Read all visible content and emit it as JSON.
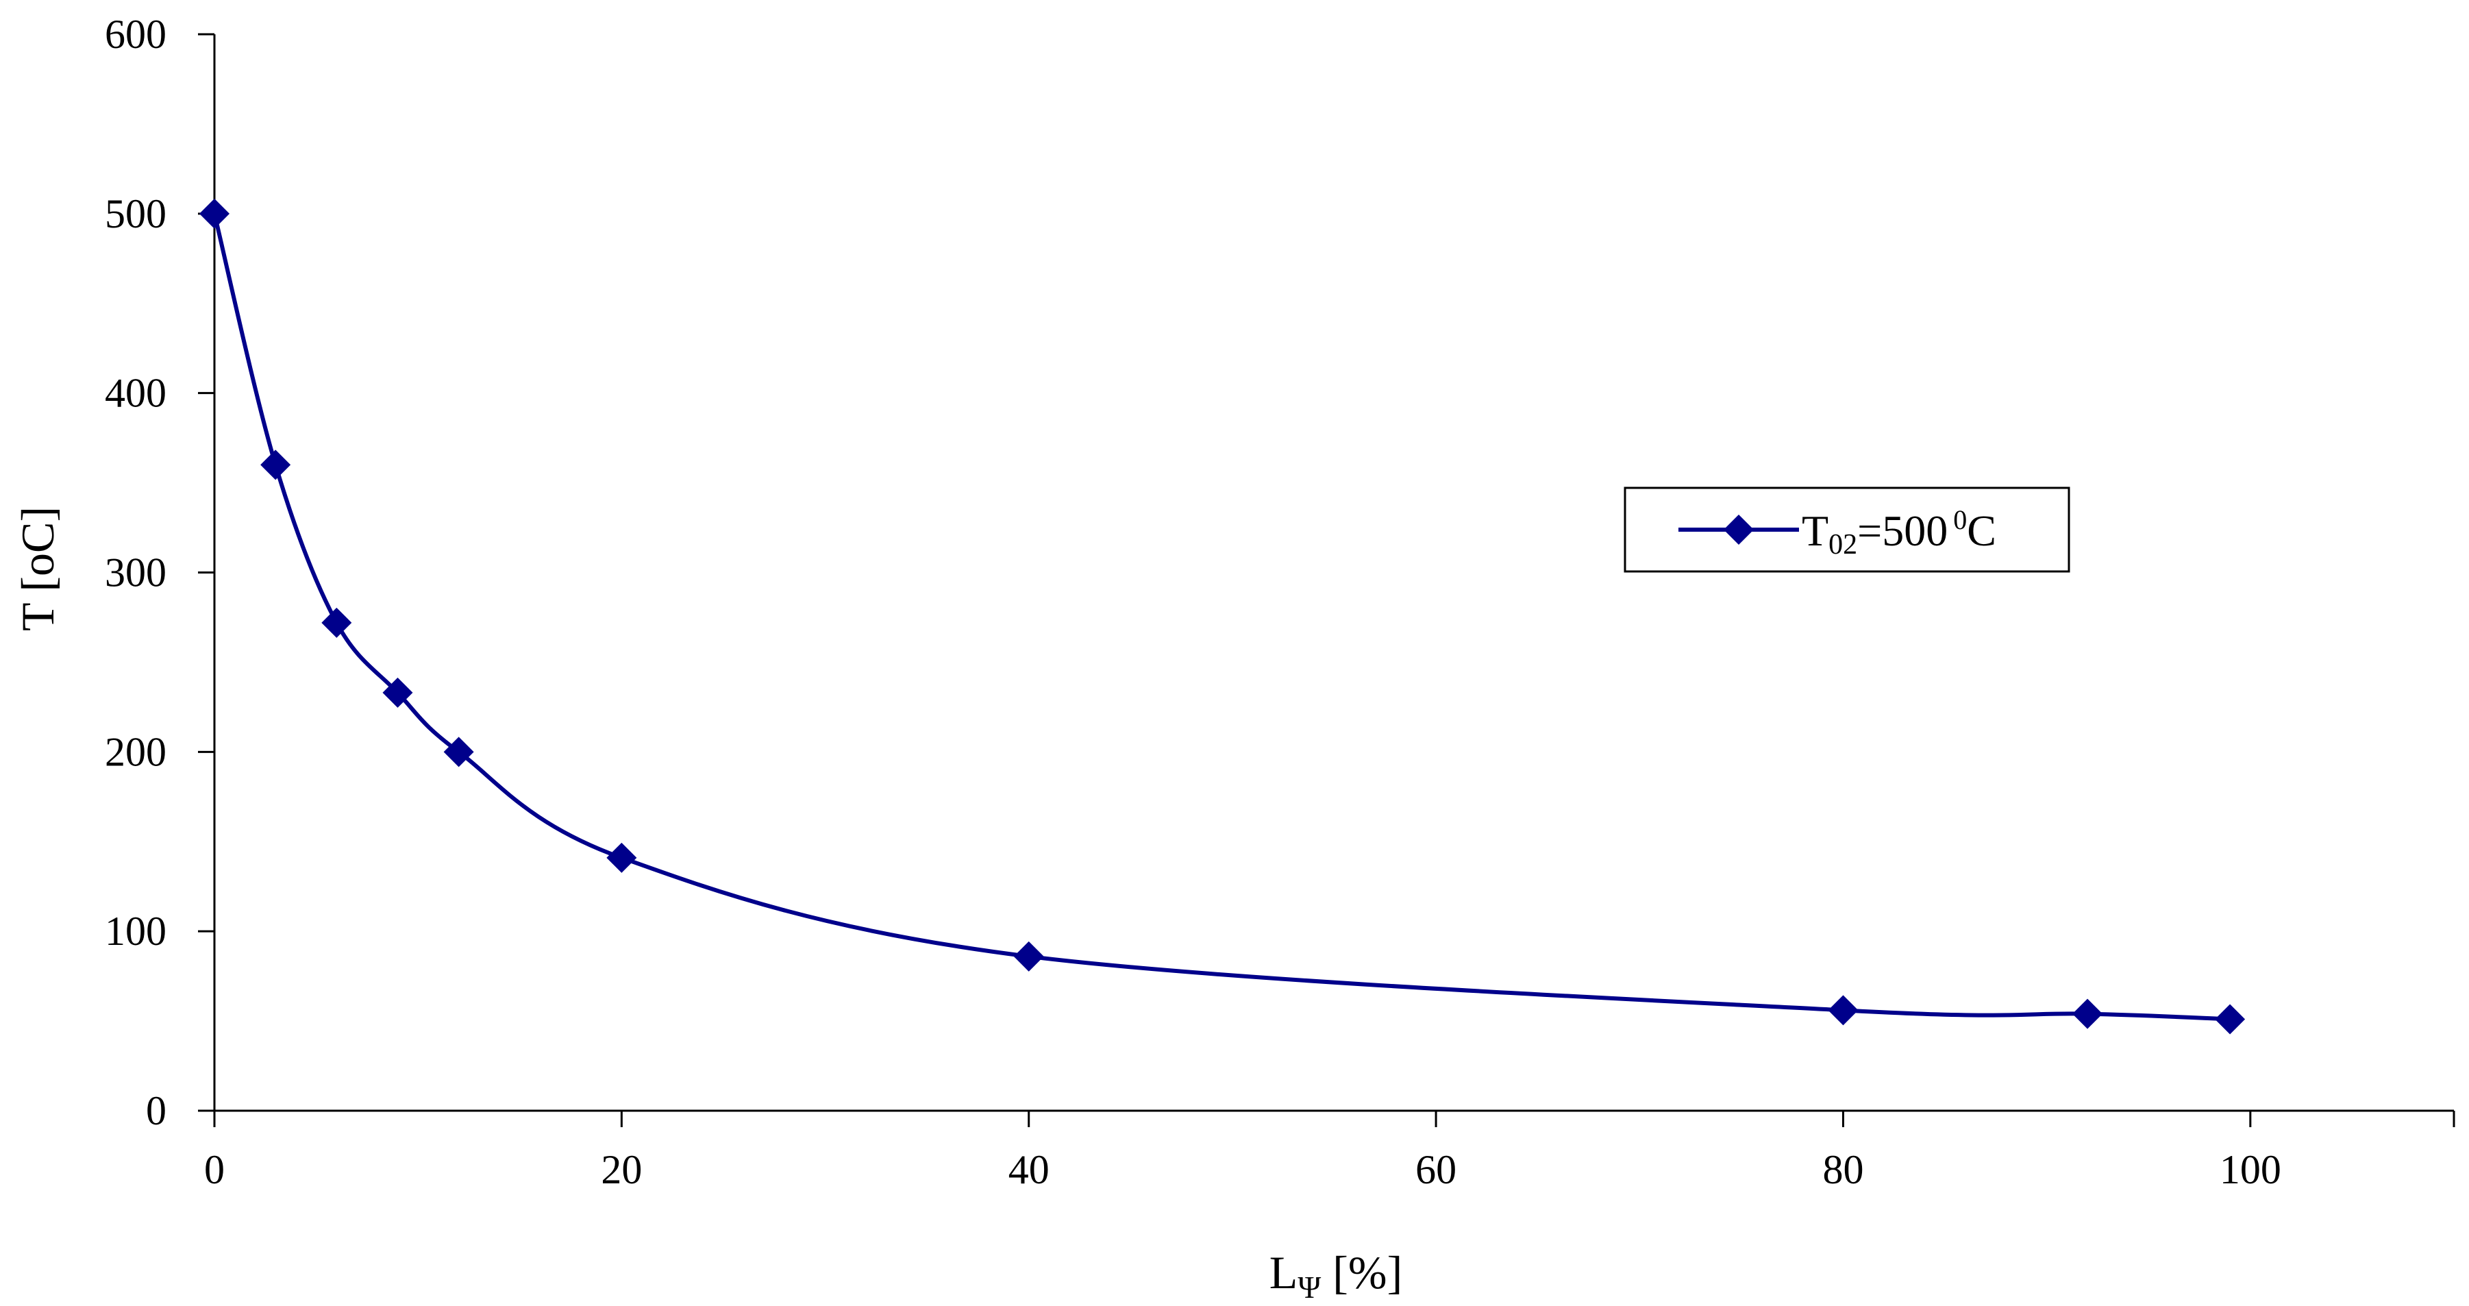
{
  "chart_data": {
    "type": "line",
    "title": "",
    "xlabel": "Lᴪ [%]",
    "xlabel_main": "L",
    "xlabel_sub": "Ψ",
    "xlabel_rest": " [%]",
    "ylabel": "T [oC]",
    "xlim": [
      0,
      110
    ],
    "ylim": [
      0,
      600
    ],
    "xticks": [
      "0",
      "20",
      "40",
      "60",
      "80",
      "100"
    ],
    "xtick_values": [
      0,
      20,
      40,
      60,
      80,
      100
    ],
    "yticks": [
      "0",
      "100",
      "200",
      "300",
      "400",
      "500",
      "600"
    ],
    "ytick_values": [
      0,
      100,
      200,
      300,
      400,
      500,
      600
    ],
    "grid": false,
    "legend_position": "right-middle",
    "series": [
      {
        "name": "T02=500⁰C",
        "legend_main": "T",
        "legend_sub": "02",
        "legend_rest": "=500",
        "legend_sup": "0",
        "legend_unit": "C",
        "color": "#00008B",
        "marker": "diamond",
        "smooth": true,
        "x": [
          0,
          3,
          6,
          9,
          12,
          20,
          40,
          80,
          92,
          99
        ],
        "y": [
          500,
          360,
          272,
          233,
          200,
          141,
          86,
          56,
          54,
          51
        ]
      }
    ]
  }
}
